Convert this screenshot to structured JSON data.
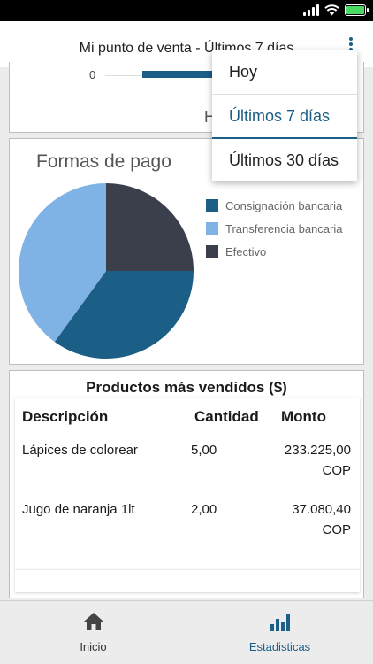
{
  "header": {
    "title": "Mi punto de venta - Últimos 7 días"
  },
  "top_chart": {
    "axis_zero": "0",
    "partial_label": "H"
  },
  "pie_card": {
    "title": "Formas de pago",
    "colors": {
      "consignacion": "#1b5e86",
      "transferencia": "#7fb2e5",
      "efectivo": "#3a3f4b"
    },
    "legend": [
      {
        "label": "Consignación bancaria",
        "color": "#1b5e86"
      },
      {
        "label": "Transferencia bancaria",
        "color": "#7fb2e5"
      },
      {
        "label": "Efectivo",
        "color": "#3a3f4b"
      }
    ]
  },
  "chart_data": {
    "type": "pie",
    "title": "Formas de pago",
    "slices": [
      {
        "label": "Efectivo",
        "value": 25
      },
      {
        "label": "Consignación bancaria",
        "value": 35
      },
      {
        "label": "Transferencia bancaria",
        "value": 40
      }
    ],
    "legend_position": "right"
  },
  "products": {
    "title": "Productos más vendidos ($)",
    "columns": [
      "Descripción",
      "Cantidad",
      "Monto"
    ],
    "rows": [
      {
        "descripcion": "Lápices de colorear",
        "cantidad": "5,00",
        "monto_line1": "233.225,00",
        "monto_line2": "COP"
      },
      {
        "descripcion": "Jugo de naranja 1lt",
        "cantidad": "2,00",
        "monto_line1": "37.080,40",
        "monto_line2": "COP"
      }
    ]
  },
  "dropdown": {
    "items": [
      "Hoy",
      "Últimos 7 días",
      "Últimos 30 días"
    ],
    "selected": "Últimos 7 días"
  },
  "tabbar": {
    "tabs": [
      {
        "label": "Inicio",
        "icon": "home-icon"
      },
      {
        "label": "Estadisticas",
        "icon": "bar-chart-icon"
      }
    ],
    "active_color": "#1b5e86",
    "inactive_color": "#333333"
  }
}
